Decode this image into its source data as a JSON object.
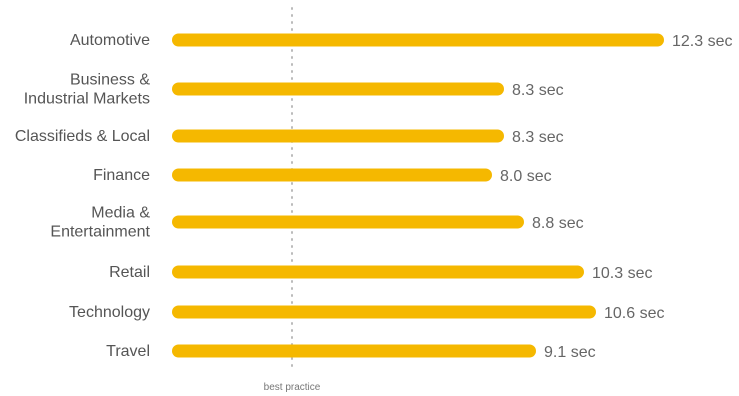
{
  "chart_data": {
    "type": "bar",
    "orientation": "horizontal",
    "categories": [
      [
        "Automotive"
      ],
      [
        "Business &",
        "Industrial Markets"
      ],
      [
        "Classifieds & Local"
      ],
      [
        "Finance"
      ],
      [
        "Media &",
        "Entertainment"
      ],
      [
        "Retail"
      ],
      [
        "Technology"
      ],
      [
        "Travel"
      ]
    ],
    "values": [
      12.3,
      8.3,
      8.3,
      8.0,
      8.8,
      10.3,
      10.6,
      9.1
    ],
    "value_labels": [
      "12.3 sec",
      "8.3 sec",
      "8.3 sec",
      "8.0 sec",
      "8.8 sec",
      "10.3 sec",
      "10.6 sec",
      "9.1 sec"
    ],
    "unit": "sec",
    "reference_line": {
      "value": 3,
      "label": "best practice",
      "style": "dotted"
    },
    "xlim": [
      0,
      12.3
    ],
    "bar_color": "#f5b800",
    "reference_color": "#bbbbbb",
    "grid": false,
    "legend": "none"
  }
}
